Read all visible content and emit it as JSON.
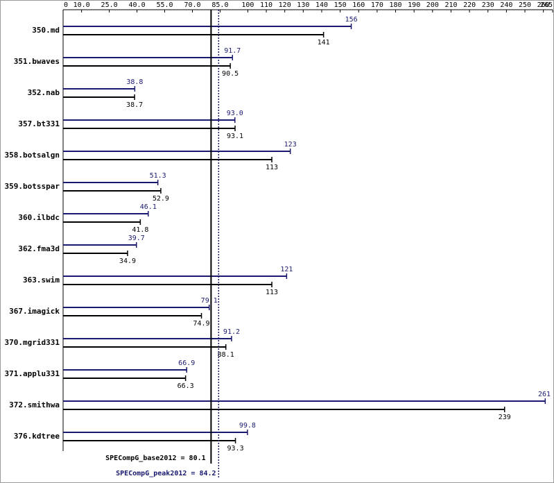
{
  "chart_data": {
    "type": "bar",
    "categories": [
      "350.md",
      "351.bwaves",
      "352.nab",
      "357.bt331",
      "358.botsalgn",
      "359.botsspar",
      "360.ilbdc",
      "362.fma3d",
      "363.swim",
      "367.imagick",
      "370.mgrid331",
      "371.applu331",
      "372.smithwa",
      "376.kdtree"
    ],
    "series": [
      {
        "color": "#191970",
        "values": [
          156,
          91.7,
          38.8,
          93.0,
          123,
          51.3,
          46.1,
          39.7,
          121,
          79.1,
          91.2,
          66.9,
          261,
          99.8
        ],
        "value_labels": [
          "156",
          "91.7",
          "38.8",
          "93.0",
          "123",
          "51.3",
          "46.1",
          "39.7",
          "121",
          "79.1",
          "91.2",
          "66.9",
          "261",
          "99.8"
        ]
      },
      {
        "color": "#000000",
        "values": [
          141,
          90.5,
          38.7,
          93.1,
          113,
          52.9,
          41.8,
          34.9,
          113,
          74.9,
          88.1,
          66.3,
          239,
          93.3
        ]
      }
    ],
    "xlim": [
      0,
      265
    ],
    "xticks": [
      0,
      {
        "value": 10,
        "label": "10.0"
      },
      {
        "value": 25,
        "label": "25.0"
      },
      {
        "value": 40,
        "label": "40.0"
      },
      {
        "value": 55,
        "label": "55.0"
      },
      {
        "value": 70,
        "label": "70.0"
      },
      {
        "value": 85,
        "label": "85.0"
      },
      100,
      110,
      120,
      130,
      140,
      150,
      160,
      170,
      180,
      190,
      200,
      210,
      220,
      230,
      240,
      250,
      260,
      265
    ],
    "reference_lines": [
      {
        "label": "SPECompG_base2012 = 80.1",
        "value": 80.1,
        "color": "#000000",
        "style": "solid"
      },
      {
        "label": "SPECompG_peak2012 = 84.2",
        "value": 84.2,
        "color": "#191970",
        "style": "dotted"
      }
    ]
  }
}
